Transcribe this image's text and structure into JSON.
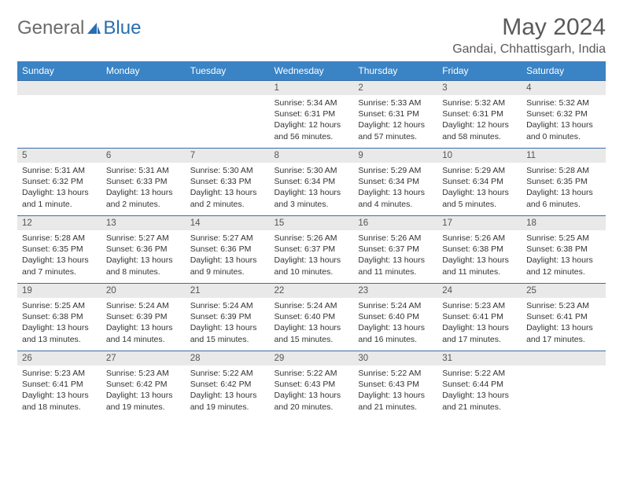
{
  "logo": {
    "part1": "General",
    "part2": "Blue"
  },
  "title": "May 2024",
  "location": "Gandai, Chhattisgarh, India",
  "colors": {
    "header_bg": "#3a83c4",
    "header_text": "#ffffff",
    "daynum_bg": "#e9e9e9",
    "border": "#3a6ea5",
    "logo_gray": "#6b6b6b",
    "logo_blue": "#2a6db0"
  },
  "day_headers": [
    "Sunday",
    "Monday",
    "Tuesday",
    "Wednesday",
    "Thursday",
    "Friday",
    "Saturday"
  ],
  "weeks": [
    [
      {
        "n": "",
        "sr": "",
        "ss": "",
        "dl": ""
      },
      {
        "n": "",
        "sr": "",
        "ss": "",
        "dl": ""
      },
      {
        "n": "",
        "sr": "",
        "ss": "",
        "dl": ""
      },
      {
        "n": "1",
        "sr": "Sunrise: 5:34 AM",
        "ss": "Sunset: 6:31 PM",
        "dl": "Daylight: 12 hours and 56 minutes."
      },
      {
        "n": "2",
        "sr": "Sunrise: 5:33 AM",
        "ss": "Sunset: 6:31 PM",
        "dl": "Daylight: 12 hours and 57 minutes."
      },
      {
        "n": "3",
        "sr": "Sunrise: 5:32 AM",
        "ss": "Sunset: 6:31 PM",
        "dl": "Daylight: 12 hours and 58 minutes."
      },
      {
        "n": "4",
        "sr": "Sunrise: 5:32 AM",
        "ss": "Sunset: 6:32 PM",
        "dl": "Daylight: 13 hours and 0 minutes."
      }
    ],
    [
      {
        "n": "5",
        "sr": "Sunrise: 5:31 AM",
        "ss": "Sunset: 6:32 PM",
        "dl": "Daylight: 13 hours and 1 minute."
      },
      {
        "n": "6",
        "sr": "Sunrise: 5:31 AM",
        "ss": "Sunset: 6:33 PM",
        "dl": "Daylight: 13 hours and 2 minutes."
      },
      {
        "n": "7",
        "sr": "Sunrise: 5:30 AM",
        "ss": "Sunset: 6:33 PM",
        "dl": "Daylight: 13 hours and 2 minutes."
      },
      {
        "n": "8",
        "sr": "Sunrise: 5:30 AM",
        "ss": "Sunset: 6:34 PM",
        "dl": "Daylight: 13 hours and 3 minutes."
      },
      {
        "n": "9",
        "sr": "Sunrise: 5:29 AM",
        "ss": "Sunset: 6:34 PM",
        "dl": "Daylight: 13 hours and 4 minutes."
      },
      {
        "n": "10",
        "sr": "Sunrise: 5:29 AM",
        "ss": "Sunset: 6:34 PM",
        "dl": "Daylight: 13 hours and 5 minutes."
      },
      {
        "n": "11",
        "sr": "Sunrise: 5:28 AM",
        "ss": "Sunset: 6:35 PM",
        "dl": "Daylight: 13 hours and 6 minutes."
      }
    ],
    [
      {
        "n": "12",
        "sr": "Sunrise: 5:28 AM",
        "ss": "Sunset: 6:35 PM",
        "dl": "Daylight: 13 hours and 7 minutes."
      },
      {
        "n": "13",
        "sr": "Sunrise: 5:27 AM",
        "ss": "Sunset: 6:36 PM",
        "dl": "Daylight: 13 hours and 8 minutes."
      },
      {
        "n": "14",
        "sr": "Sunrise: 5:27 AM",
        "ss": "Sunset: 6:36 PM",
        "dl": "Daylight: 13 hours and 9 minutes."
      },
      {
        "n": "15",
        "sr": "Sunrise: 5:26 AM",
        "ss": "Sunset: 6:37 PM",
        "dl": "Daylight: 13 hours and 10 minutes."
      },
      {
        "n": "16",
        "sr": "Sunrise: 5:26 AM",
        "ss": "Sunset: 6:37 PM",
        "dl": "Daylight: 13 hours and 11 minutes."
      },
      {
        "n": "17",
        "sr": "Sunrise: 5:26 AM",
        "ss": "Sunset: 6:38 PM",
        "dl": "Daylight: 13 hours and 11 minutes."
      },
      {
        "n": "18",
        "sr": "Sunrise: 5:25 AM",
        "ss": "Sunset: 6:38 PM",
        "dl": "Daylight: 13 hours and 12 minutes."
      }
    ],
    [
      {
        "n": "19",
        "sr": "Sunrise: 5:25 AM",
        "ss": "Sunset: 6:38 PM",
        "dl": "Daylight: 13 hours and 13 minutes."
      },
      {
        "n": "20",
        "sr": "Sunrise: 5:24 AM",
        "ss": "Sunset: 6:39 PM",
        "dl": "Daylight: 13 hours and 14 minutes."
      },
      {
        "n": "21",
        "sr": "Sunrise: 5:24 AM",
        "ss": "Sunset: 6:39 PM",
        "dl": "Daylight: 13 hours and 15 minutes."
      },
      {
        "n": "22",
        "sr": "Sunrise: 5:24 AM",
        "ss": "Sunset: 6:40 PM",
        "dl": "Daylight: 13 hours and 15 minutes."
      },
      {
        "n": "23",
        "sr": "Sunrise: 5:24 AM",
        "ss": "Sunset: 6:40 PM",
        "dl": "Daylight: 13 hours and 16 minutes."
      },
      {
        "n": "24",
        "sr": "Sunrise: 5:23 AM",
        "ss": "Sunset: 6:41 PM",
        "dl": "Daylight: 13 hours and 17 minutes."
      },
      {
        "n": "25",
        "sr": "Sunrise: 5:23 AM",
        "ss": "Sunset: 6:41 PM",
        "dl": "Daylight: 13 hours and 17 minutes."
      }
    ],
    [
      {
        "n": "26",
        "sr": "Sunrise: 5:23 AM",
        "ss": "Sunset: 6:41 PM",
        "dl": "Daylight: 13 hours and 18 minutes."
      },
      {
        "n": "27",
        "sr": "Sunrise: 5:23 AM",
        "ss": "Sunset: 6:42 PM",
        "dl": "Daylight: 13 hours and 19 minutes."
      },
      {
        "n": "28",
        "sr": "Sunrise: 5:22 AM",
        "ss": "Sunset: 6:42 PM",
        "dl": "Daylight: 13 hours and 19 minutes."
      },
      {
        "n": "29",
        "sr": "Sunrise: 5:22 AM",
        "ss": "Sunset: 6:43 PM",
        "dl": "Daylight: 13 hours and 20 minutes."
      },
      {
        "n": "30",
        "sr": "Sunrise: 5:22 AM",
        "ss": "Sunset: 6:43 PM",
        "dl": "Daylight: 13 hours and 21 minutes."
      },
      {
        "n": "31",
        "sr": "Sunrise: 5:22 AM",
        "ss": "Sunset: 6:44 PM",
        "dl": "Daylight: 13 hours and 21 minutes."
      },
      {
        "n": "",
        "sr": "",
        "ss": "",
        "dl": ""
      }
    ]
  ]
}
